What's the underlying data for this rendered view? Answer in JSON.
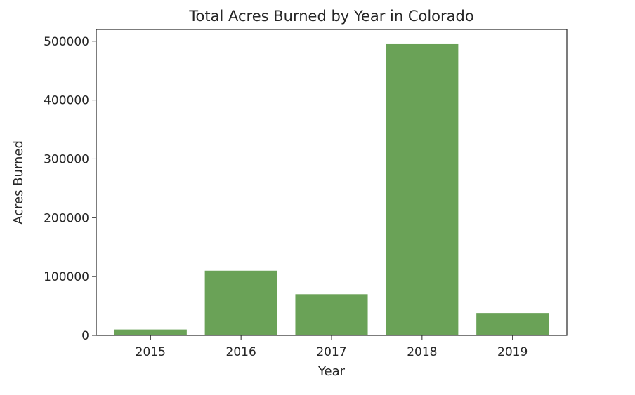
{
  "chart_data": {
    "type": "bar",
    "title": "Total Acres Burned by Year in Colorado",
    "xlabel": "Year",
    "ylabel": "Acres Burned",
    "categories": [
      "2015",
      "2016",
      "2017",
      "2018",
      "2019"
    ],
    "values": [
      10000,
      110000,
      70000,
      495000,
      38000
    ],
    "ylim": [
      0,
      520000
    ],
    "yticks": [
      0,
      100000,
      200000,
      300000,
      400000,
      500000
    ],
    "ytick_labels": [
      "0",
      "100000",
      "200000",
      "300000",
      "400000",
      "500000"
    ],
    "bar_color": "#6aa257",
    "grid": false,
    "legend": "none"
  }
}
